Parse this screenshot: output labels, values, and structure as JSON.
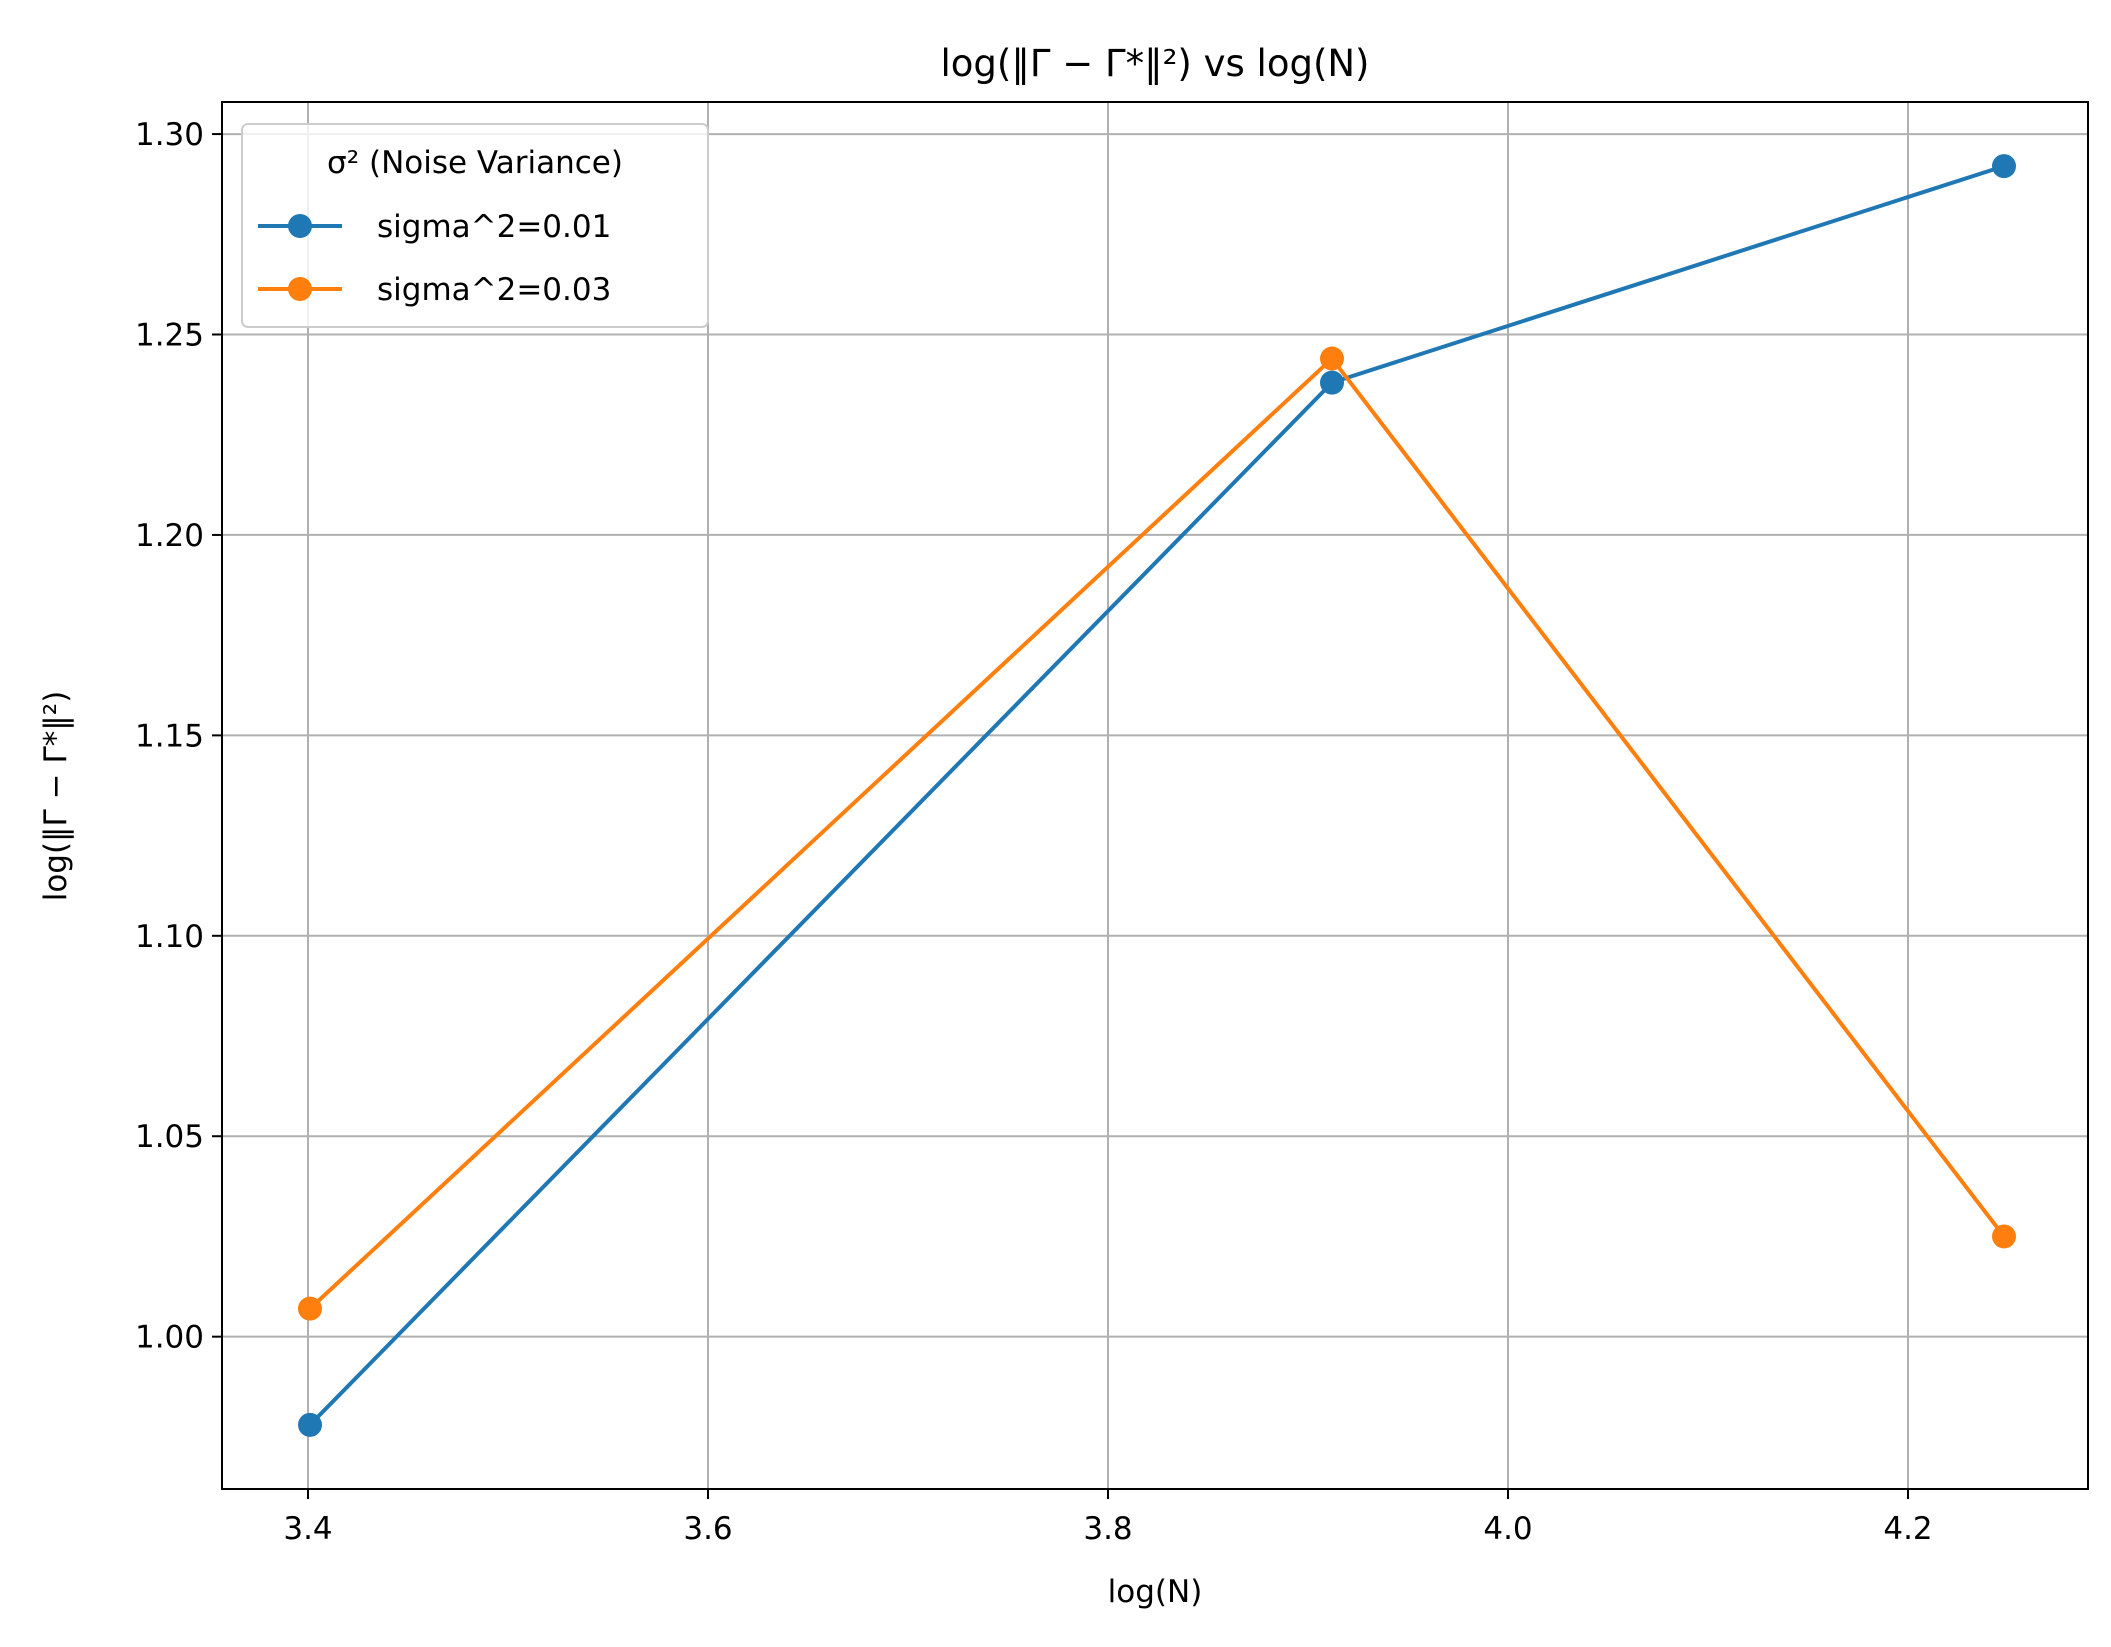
{
  "chart_data": {
    "type": "line",
    "title": "log(‖Γ − Γ*‖²) vs log(N)",
    "xlabel": "log(N)",
    "ylabel": "log(‖Γ − Γ*‖²)",
    "xlim": [
      3.357,
      4.29
    ],
    "ylim": [
      0.962,
      1.308
    ],
    "xticks": [
      "3.4",
      "3.6",
      "3.8",
      "4.0",
      "4.2"
    ],
    "yticks": [
      "1.00",
      "1.05",
      "1.10",
      "1.15",
      "1.20",
      "1.25",
      "1.30"
    ],
    "grid": true,
    "legend_position": "top-left",
    "legend_title": "σ² (Noise Variance)",
    "x": [
      3.401,
      3.912,
      4.248
    ],
    "series": [
      {
        "name": "sigma^2=0.01",
        "color": "#1f77b4",
        "values": [
          0.978,
          1.238,
          1.292
        ]
      },
      {
        "name": "sigma^2=0.03",
        "color": "#ff7f0e",
        "values": [
          1.007,
          1.244,
          1.025
        ]
      }
    ]
  }
}
